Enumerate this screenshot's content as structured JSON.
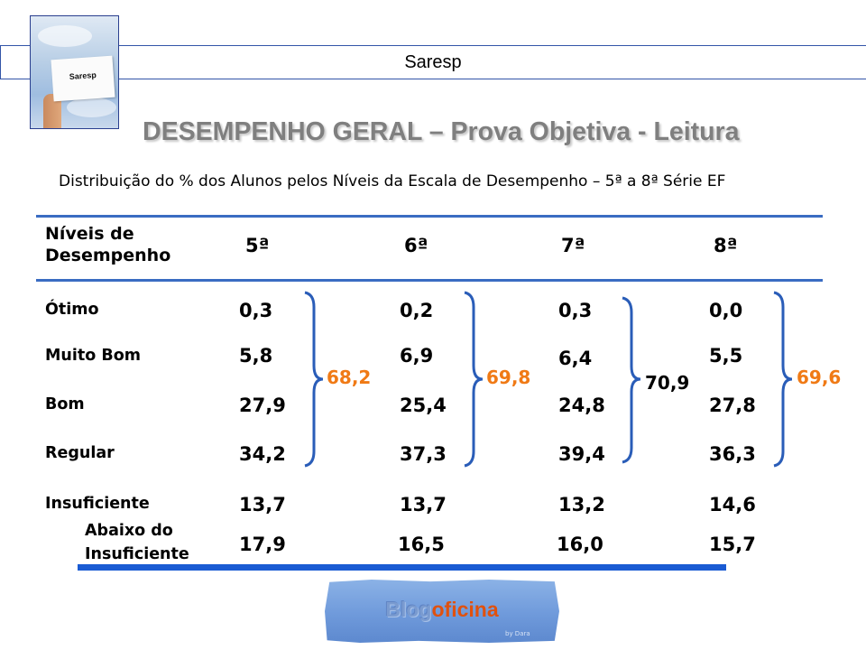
{
  "header": {
    "title": "Saresp"
  },
  "logo": {
    "card_text": "Saresp"
  },
  "main_title": "DESEMPENHO GERAL – Prova Objetiva - Leitura",
  "subtitle": "Distribuição do % dos Alunos pelos Níveis da Escala de Desempenho – 5ª a 8ª Série EF",
  "table": {
    "header_line1": "Níveis de",
    "header_line2": "Desempenho",
    "columns": [
      "5ª",
      "6ª",
      "7ª",
      "8ª"
    ],
    "rows": [
      {
        "label": "Ótimo",
        "values": [
          "0,3",
          "0,2",
          "0,3",
          "0,0"
        ]
      },
      {
        "label": "Muito Bom",
        "values": [
          "5,8",
          "6,9",
          "6,4",
          "5,5"
        ]
      },
      {
        "label": "Bom",
        "values": [
          "27,9",
          "25,4",
          "24,8",
          "27,8"
        ]
      },
      {
        "label": "Regular",
        "values": [
          "34,2",
          "37,3",
          "39,4",
          "36,3"
        ]
      },
      {
        "label": "Insuficiente",
        "values": [
          "13,7",
          "13,7",
          "13,2",
          "14,6"
        ]
      },
      {
        "label_line1": "Abaixo do",
        "label_line2": "Insuficiente",
        "values": [
          "17,9",
          "16,5",
          "16,0",
          "15,7"
        ]
      }
    ],
    "brace_sums": [
      "68,2",
      "69,8",
      "70,9",
      "69,6"
    ]
  },
  "button": {
    "part1": "Blog",
    "part2": "oficina",
    "byline": "by Dara"
  },
  "colors": {
    "accent_blue": "#3a6cc2",
    "sum_orange": "#f07a15",
    "title_gray": "#7f7f7f"
  }
}
